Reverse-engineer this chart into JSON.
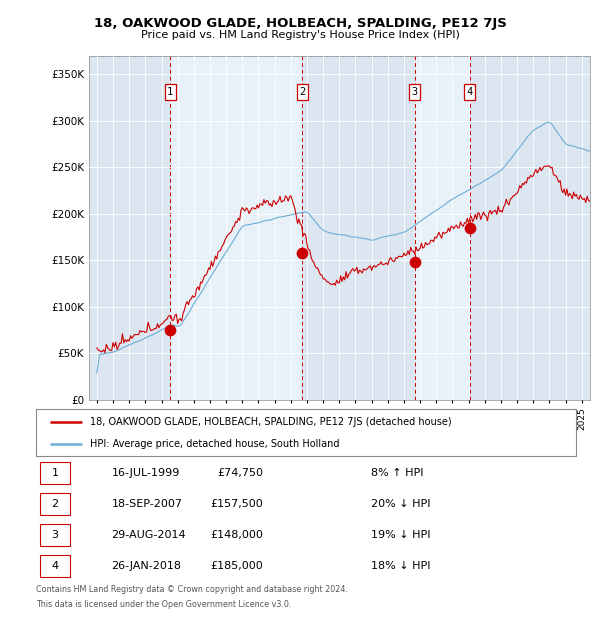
{
  "title": "18, OAKWOOD GLADE, HOLBEACH, SPALDING, PE12 7JS",
  "subtitle": "Price paid vs. HM Land Registry's House Price Index (HPI)",
  "transactions": [
    {
      "num": 1,
      "date_label": "16-JUL-1999",
      "price": 74750,
      "pct": "8%",
      "direction": "↑",
      "year": 1999.54
    },
    {
      "num": 2,
      "date_label": "18-SEP-2007",
      "price": 157500,
      "pct": "20%",
      "direction": "↓",
      "year": 2007.71
    },
    {
      "num": 3,
      "date_label": "29-AUG-2014",
      "price": 148000,
      "pct": "19%",
      "direction": "↓",
      "year": 2014.66
    },
    {
      "num": 4,
      "date_label": "26-JAN-2018",
      "price": 185000,
      "pct": "18%",
      "direction": "↓",
      "year": 2018.07
    }
  ],
  "legend_entry1": "18, OAKWOOD GLADE, HOLBEACH, SPALDING, PE12 7JS (detached house)",
  "legend_entry2": "HPI: Average price, detached house, South Holland",
  "footer1": "Contains HM Land Registry data © Crown copyright and database right 2024.",
  "footer2": "This data is licensed under the Open Government Licence v3.0.",
  "table_rows": [
    [
      "1",
      "16-JUL-1999",
      "£74,750",
      "8% ↑ HPI"
    ],
    [
      "2",
      "18-SEP-2007",
      "£157,500",
      "20% ↓ HPI"
    ],
    [
      "3",
      "29-AUG-2014",
      "£148,000",
      "19% ↓ HPI"
    ],
    [
      "4",
      "26-JAN-2018",
      "£185,000",
      "18% ↓ HPI"
    ]
  ],
  "xlim": [
    1994.5,
    2025.5
  ],
  "ylim": [
    0,
    370000
  ],
  "yticks": [
    0,
    50000,
    100000,
    150000,
    200000,
    250000,
    300000,
    350000
  ],
  "ylabels": [
    "£0",
    "£50K",
    "£100K",
    "£150K",
    "£200K",
    "£250K",
    "£300K",
    "£350K"
  ],
  "red_color": "#cc0000",
  "blue_color": "#6baed6",
  "bg_color": "#dce6f1",
  "white_color": "#ffffff"
}
